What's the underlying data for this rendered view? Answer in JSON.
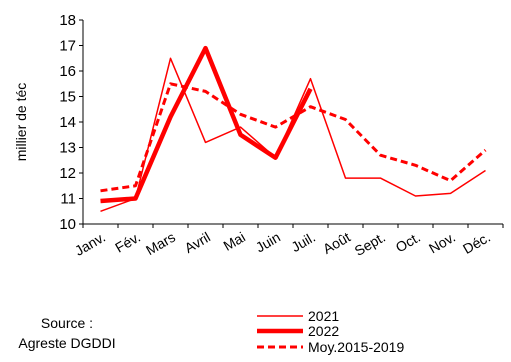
{
  "chart_data": {
    "type": "line",
    "ylabel": "millier  de téc",
    "ylim": [
      10,
      18
    ],
    "yticks": [
      10,
      11,
      12,
      13,
      14,
      15,
      16,
      17,
      18
    ],
    "categories": [
      "Janv.",
      "Fév.",
      "Mars",
      "Avril",
      "Mai",
      "Juin",
      "Juil.",
      "Août",
      "Sept.",
      "Oct.",
      "Nov.",
      "Déc."
    ],
    "series": [
      {
        "name": "2021",
        "values": [
          10.5,
          11.0,
          16.5,
          13.2,
          13.8,
          12.6,
          15.7,
          11.8,
          11.8,
          11.1,
          11.2,
          12.1
        ],
        "color": "#ff0000",
        "style": "thin"
      },
      {
        "name": "2022",
        "values": [
          10.9,
          11.0,
          14.2,
          16.9,
          13.5,
          12.6,
          15.3,
          null,
          null,
          null,
          null,
          null
        ],
        "color": "#ff0000",
        "style": "thick"
      },
      {
        "name": "Moy.2015-2019",
        "values": [
          11.3,
          11.5,
          15.5,
          15.2,
          14.3,
          13.8,
          14.6,
          14.1,
          12.7,
          12.3,
          11.7,
          12.9
        ],
        "color": "#ff0000",
        "style": "dashed"
      }
    ],
    "legend_position": "bottom-center",
    "grid": false
  },
  "source": {
    "line1": "Source :",
    "line2": "Agreste DGDDI"
  }
}
